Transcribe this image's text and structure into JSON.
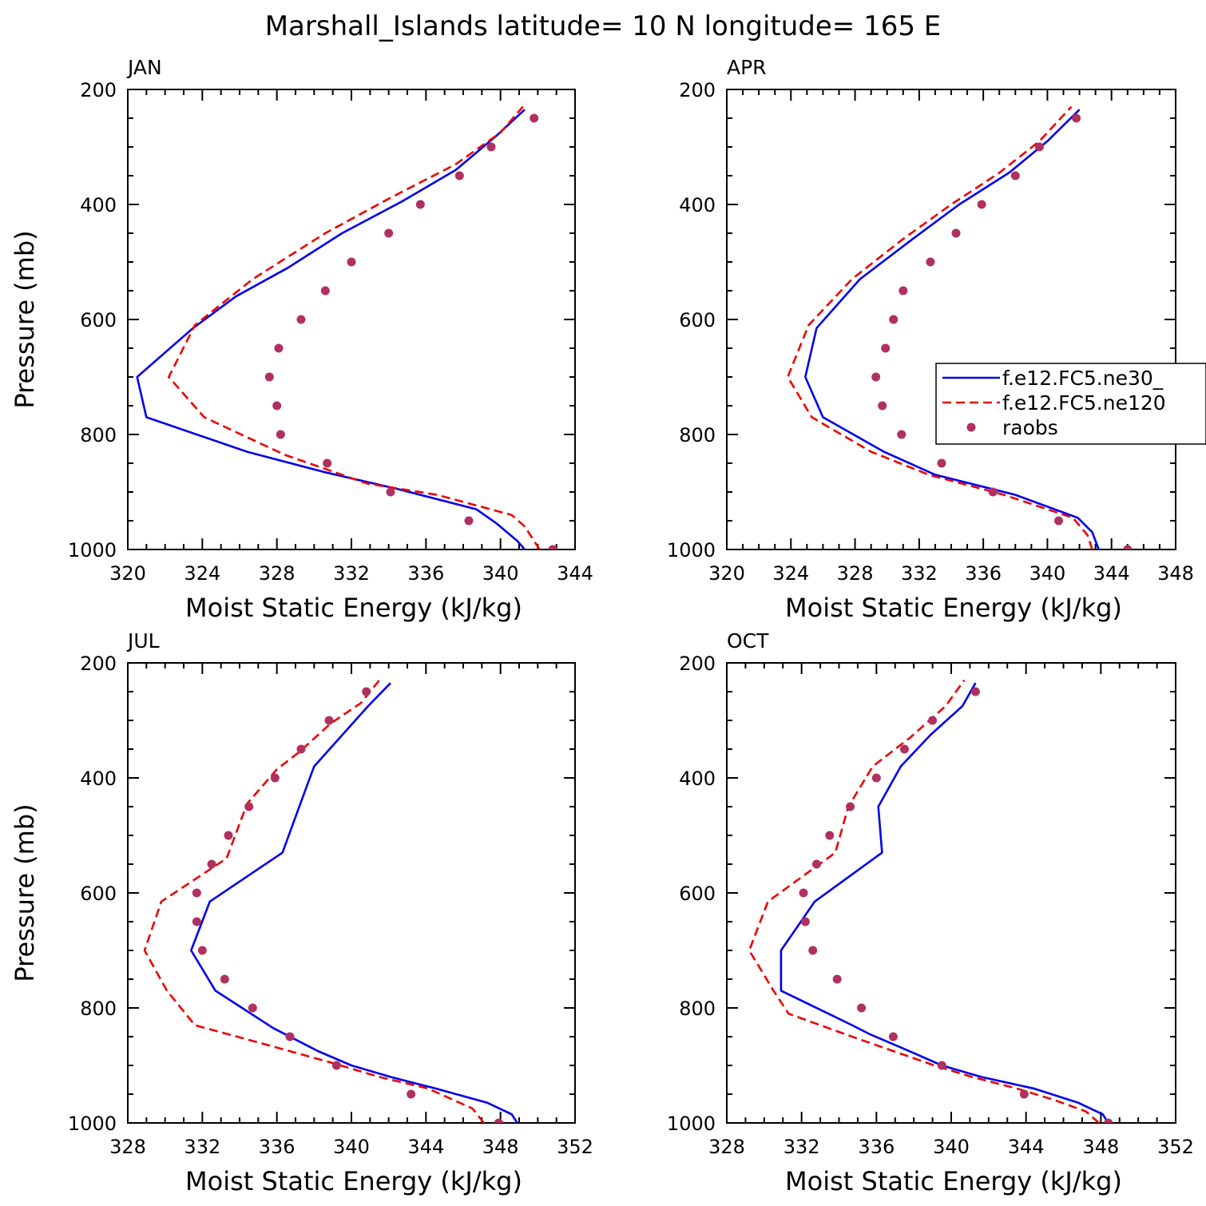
{
  "figure_title": "Marshall_Islands  latitude= 10 N longitude= 165 E",
  "legend": {
    "entries": [
      {
        "label": "f.e12.FC5.ne30_",
        "style": "solid",
        "color": "#0000ee"
      },
      {
        "label": "f.e12.FC5.ne120",
        "style": "dashed",
        "color": "#ee0000"
      },
      {
        "label": "raobs",
        "style": "dots",
        "color": "#b03060"
      }
    ]
  },
  "chart_data": [
    {
      "type": "line",
      "panel": "JAN",
      "title": "JAN",
      "xlabel": "Moist Static Energy (kJ/kg)",
      "ylabel": "Pressure (mb)",
      "xlim": [
        320,
        344
      ],
      "ylim": [
        1000,
        200
      ],
      "xticks": [
        320,
        324,
        328,
        332,
        336,
        340,
        344
      ],
      "yticks": [
        200,
        400,
        600,
        800,
        1000
      ],
      "series": [
        {
          "name": "f.e12.FC5.ne30_",
          "color": "#0000ee",
          "style": "solid",
          "points": [
            [
              341.3,
              1000
            ],
            [
              340.9,
              985
            ],
            [
              339.8,
              955
            ],
            [
              338.7,
              930
            ],
            [
              334.5,
              895
            ],
            [
              330.5,
              865
            ],
            [
              326.4,
              830
            ],
            [
              321.0,
              770
            ],
            [
              320.5,
              700
            ],
            [
              323.5,
              615
            ],
            [
              325.8,
              560
            ],
            [
              328.6,
              510
            ],
            [
              331.5,
              450
            ],
            [
              334.7,
              395
            ],
            [
              337.6,
              340
            ],
            [
              339.8,
              280
            ],
            [
              341.3,
              235
            ]
          ]
        },
        {
          "name": "f.e12.FC5.ne120",
          "color": "#ee0000",
          "style": "dashed",
          "points": [
            [
              342.1,
              1000
            ],
            [
              341.3,
              960
            ],
            [
              340.6,
              940
            ],
            [
              336.6,
              905
            ],
            [
              332.8,
              885
            ],
            [
              328.4,
              835
            ],
            [
              324.1,
              770
            ],
            [
              322.2,
              700
            ],
            [
              323.6,
              610
            ],
            [
              326.7,
              530
            ],
            [
              330.6,
              450
            ],
            [
              334.0,
              390
            ],
            [
              337.6,
              330
            ],
            [
              340.0,
              275
            ],
            [
              341.2,
              230
            ]
          ]
        },
        {
          "name": "raobs",
          "color": "#b03060",
          "style": "dots",
          "points": [
            [
              341.8,
              250
            ],
            [
              339.5,
              300
            ],
            [
              337.8,
              350
            ],
            [
              335.7,
              400
            ],
            [
              334.0,
              450
            ],
            [
              332.0,
              500
            ],
            [
              330.6,
              550
            ],
            [
              329.3,
              600
            ],
            [
              328.1,
              650
            ],
            [
              327.6,
              700
            ],
            [
              328.0,
              750
            ],
            [
              328.2,
              800
            ],
            [
              330.7,
              850
            ],
            [
              334.1,
              900
            ],
            [
              338.3,
              950
            ],
            [
              342.8,
              1000
            ]
          ]
        }
      ]
    },
    {
      "type": "line",
      "panel": "APR",
      "title": "APR",
      "xlabel": "Moist Static Energy (kJ/kg)",
      "ylabel": "",
      "xlim": [
        320,
        348
      ],
      "ylim": [
        1000,
        200
      ],
      "xticks": [
        320,
        324,
        328,
        332,
        336,
        340,
        344,
        348
      ],
      "yticks": [
        200,
        400,
        600,
        800,
        1000
      ],
      "legend_shown": true,
      "series": [
        {
          "name": "f.e12.FC5.ne30_",
          "color": "#0000ee",
          "style": "solid",
          "points": [
            [
              343.2,
              1000
            ],
            [
              342.8,
              970
            ],
            [
              341.9,
              945
            ],
            [
              338.0,
              905
            ],
            [
              333.0,
              870
            ],
            [
              329.8,
              830
            ],
            [
              326.0,
              770
            ],
            [
              324.9,
              700
            ],
            [
              325.6,
              615
            ],
            [
              328.3,
              530
            ],
            [
              331.6,
              460
            ],
            [
              334.5,
              400
            ],
            [
              337.6,
              345
            ],
            [
              340.0,
              290
            ],
            [
              342.0,
              235
            ]
          ]
        },
        {
          "name": "f.e12.FC5.ne120",
          "color": "#ee0000",
          "style": "dashed",
          "points": [
            [
              342.8,
              1000
            ],
            [
              342.5,
              975
            ],
            [
              341.6,
              945
            ],
            [
              337.3,
              905
            ],
            [
              332.6,
              870
            ],
            [
              329.0,
              830
            ],
            [
              325.3,
              770
            ],
            [
              323.8,
              700
            ],
            [
              325.1,
              610
            ],
            [
              327.8,
              530
            ],
            [
              331.0,
              460
            ],
            [
              334.0,
              400
            ],
            [
              337.0,
              345
            ],
            [
              339.5,
              290
            ],
            [
              341.5,
              230
            ]
          ]
        },
        {
          "name": "raobs",
          "color": "#b03060",
          "style": "dots",
          "points": [
            [
              341.8,
              250
            ],
            [
              339.5,
              300
            ],
            [
              338.0,
              350
            ],
            [
              335.9,
              400
            ],
            [
              334.3,
              450
            ],
            [
              332.7,
              500
            ],
            [
              331.0,
              550
            ],
            [
              330.4,
              600
            ],
            [
              329.9,
              650
            ],
            [
              329.3,
              700
            ],
            [
              329.7,
              750
            ],
            [
              330.9,
              800
            ],
            [
              333.4,
              850
            ],
            [
              336.6,
              900
            ],
            [
              340.7,
              950
            ],
            [
              345.0,
              1000
            ]
          ]
        }
      ]
    },
    {
      "type": "line",
      "panel": "JUL",
      "title": "JUL",
      "xlabel": "Moist Static Energy (kJ/kg)",
      "ylabel": "Pressure (mb)",
      "xlim": [
        328,
        352
      ],
      "ylim": [
        1000,
        200
      ],
      "xticks": [
        328,
        332,
        336,
        340,
        344,
        348,
        352
      ],
      "yticks": [
        200,
        400,
        600,
        800,
        1000
      ],
      "series": [
        {
          "name": "f.e12.FC5.ne30_",
          "color": "#0000ee",
          "style": "solid",
          "points": [
            [
              348.9,
              1000
            ],
            [
              348.6,
              985
            ],
            [
              347.3,
              965
            ],
            [
              344.5,
              940
            ],
            [
              342.1,
              920
            ],
            [
              340.0,
              900
            ],
            [
              338.2,
              875
            ],
            [
              335.8,
              835
            ],
            [
              332.7,
              770
            ],
            [
              331.4,
              700
            ],
            [
              332.4,
              615
            ],
            [
              336.3,
              530
            ],
            [
              337.2,
              450
            ],
            [
              338.0,
              380
            ],
            [
              340.9,
              275
            ],
            [
              342.1,
              235
            ]
          ]
        },
        {
          "name": "f.e12.FC5.ne120",
          "color": "#ee0000",
          "style": "dashed",
          "points": [
            [
              347.1,
              1000
            ],
            [
              346.5,
              975
            ],
            [
              344.1,
              940
            ],
            [
              341.5,
              920
            ],
            [
              338.9,
              895
            ],
            [
              335.0,
              860
            ],
            [
              331.6,
              830
            ],
            [
              330.1,
              770
            ],
            [
              328.9,
              700
            ],
            [
              329.8,
              615
            ],
            [
              333.3,
              540
            ],
            [
              334.4,
              445
            ],
            [
              336.0,
              385
            ],
            [
              337.2,
              355
            ],
            [
              338.9,
              305
            ],
            [
              340.5,
              270
            ],
            [
              341.5,
              230
            ]
          ]
        },
        {
          "name": "raobs",
          "color": "#b03060",
          "style": "dots",
          "points": [
            [
              340.8,
              250
            ],
            [
              338.8,
              300
            ],
            [
              337.3,
              350
            ],
            [
              335.9,
              400
            ],
            [
              334.5,
              450
            ],
            [
              333.4,
              500
            ],
            [
              332.5,
              550
            ],
            [
              331.7,
              600
            ],
            [
              331.7,
              650
            ],
            [
              332.0,
              700
            ],
            [
              333.2,
              750
            ],
            [
              334.7,
              800
            ],
            [
              336.7,
              850
            ],
            [
              339.2,
              900
            ],
            [
              343.2,
              950
            ],
            [
              347.9,
              1000
            ]
          ]
        }
      ]
    },
    {
      "type": "line",
      "panel": "OCT",
      "title": "OCT",
      "xlabel": "Moist Static Energy (kJ/kg)",
      "ylabel": "",
      "xlim": [
        328,
        352
      ],
      "ylim": [
        1000,
        200
      ],
      "xticks": [
        328,
        332,
        336,
        340,
        344,
        348,
        352
      ],
      "yticks": [
        200,
        400,
        600,
        800,
        1000
      ],
      "series": [
        {
          "name": "f.e12.FC5.ne30_",
          "color": "#0000ee",
          "style": "solid",
          "points": [
            [
              348.4,
              1000
            ],
            [
              348.1,
              985
            ],
            [
              346.8,
              965
            ],
            [
              344.4,
              940
            ],
            [
              341.6,
              920
            ],
            [
              339.5,
              900
            ],
            [
              337.4,
              870
            ],
            [
              335.6,
              845
            ],
            [
              334.7,
              830
            ],
            [
              330.9,
              770
            ],
            [
              330.9,
              700
            ],
            [
              332.7,
              615
            ],
            [
              336.3,
              530
            ],
            [
              336.1,
              450
            ],
            [
              337.3,
              380
            ],
            [
              338.9,
              325
            ],
            [
              340.6,
              275
            ],
            [
              341.3,
              235
            ]
          ]
        },
        {
          "name": "f.e12.FC5.ne120",
          "color": "#ee0000",
          "style": "dashed",
          "points": [
            [
              347.9,
              1000
            ],
            [
              347.2,
              980
            ],
            [
              345.5,
              960
            ],
            [
              343.5,
              940
            ],
            [
              341.1,
              920
            ],
            [
              339.1,
              900
            ],
            [
              336.9,
              875
            ],
            [
              334.7,
              850
            ],
            [
              331.3,
              810
            ],
            [
              330.5,
              770
            ],
            [
              329.2,
              700
            ],
            [
              330.2,
              615
            ],
            [
              333.8,
              530
            ],
            [
              334.5,
              450
            ],
            [
              335.8,
              380
            ],
            [
              337.8,
              330
            ],
            [
              339.7,
              275
            ],
            [
              340.7,
              230
            ]
          ]
        },
        {
          "name": "raobs",
          "color": "#b03060",
          "style": "dots",
          "points": [
            [
              341.3,
              250
            ],
            [
              339.0,
              300
            ],
            [
              337.5,
              350
            ],
            [
              336.0,
              400
            ],
            [
              334.6,
              450
            ],
            [
              333.5,
              500
            ],
            [
              332.8,
              550
            ],
            [
              332.1,
              600
            ],
            [
              332.2,
              650
            ],
            [
              332.6,
              700
            ],
            [
              333.9,
              750
            ],
            [
              335.2,
              800
            ],
            [
              336.9,
              850
            ],
            [
              339.5,
              900
            ],
            [
              343.9,
              950
            ],
            [
              348.4,
              1000
            ]
          ]
        }
      ]
    }
  ]
}
